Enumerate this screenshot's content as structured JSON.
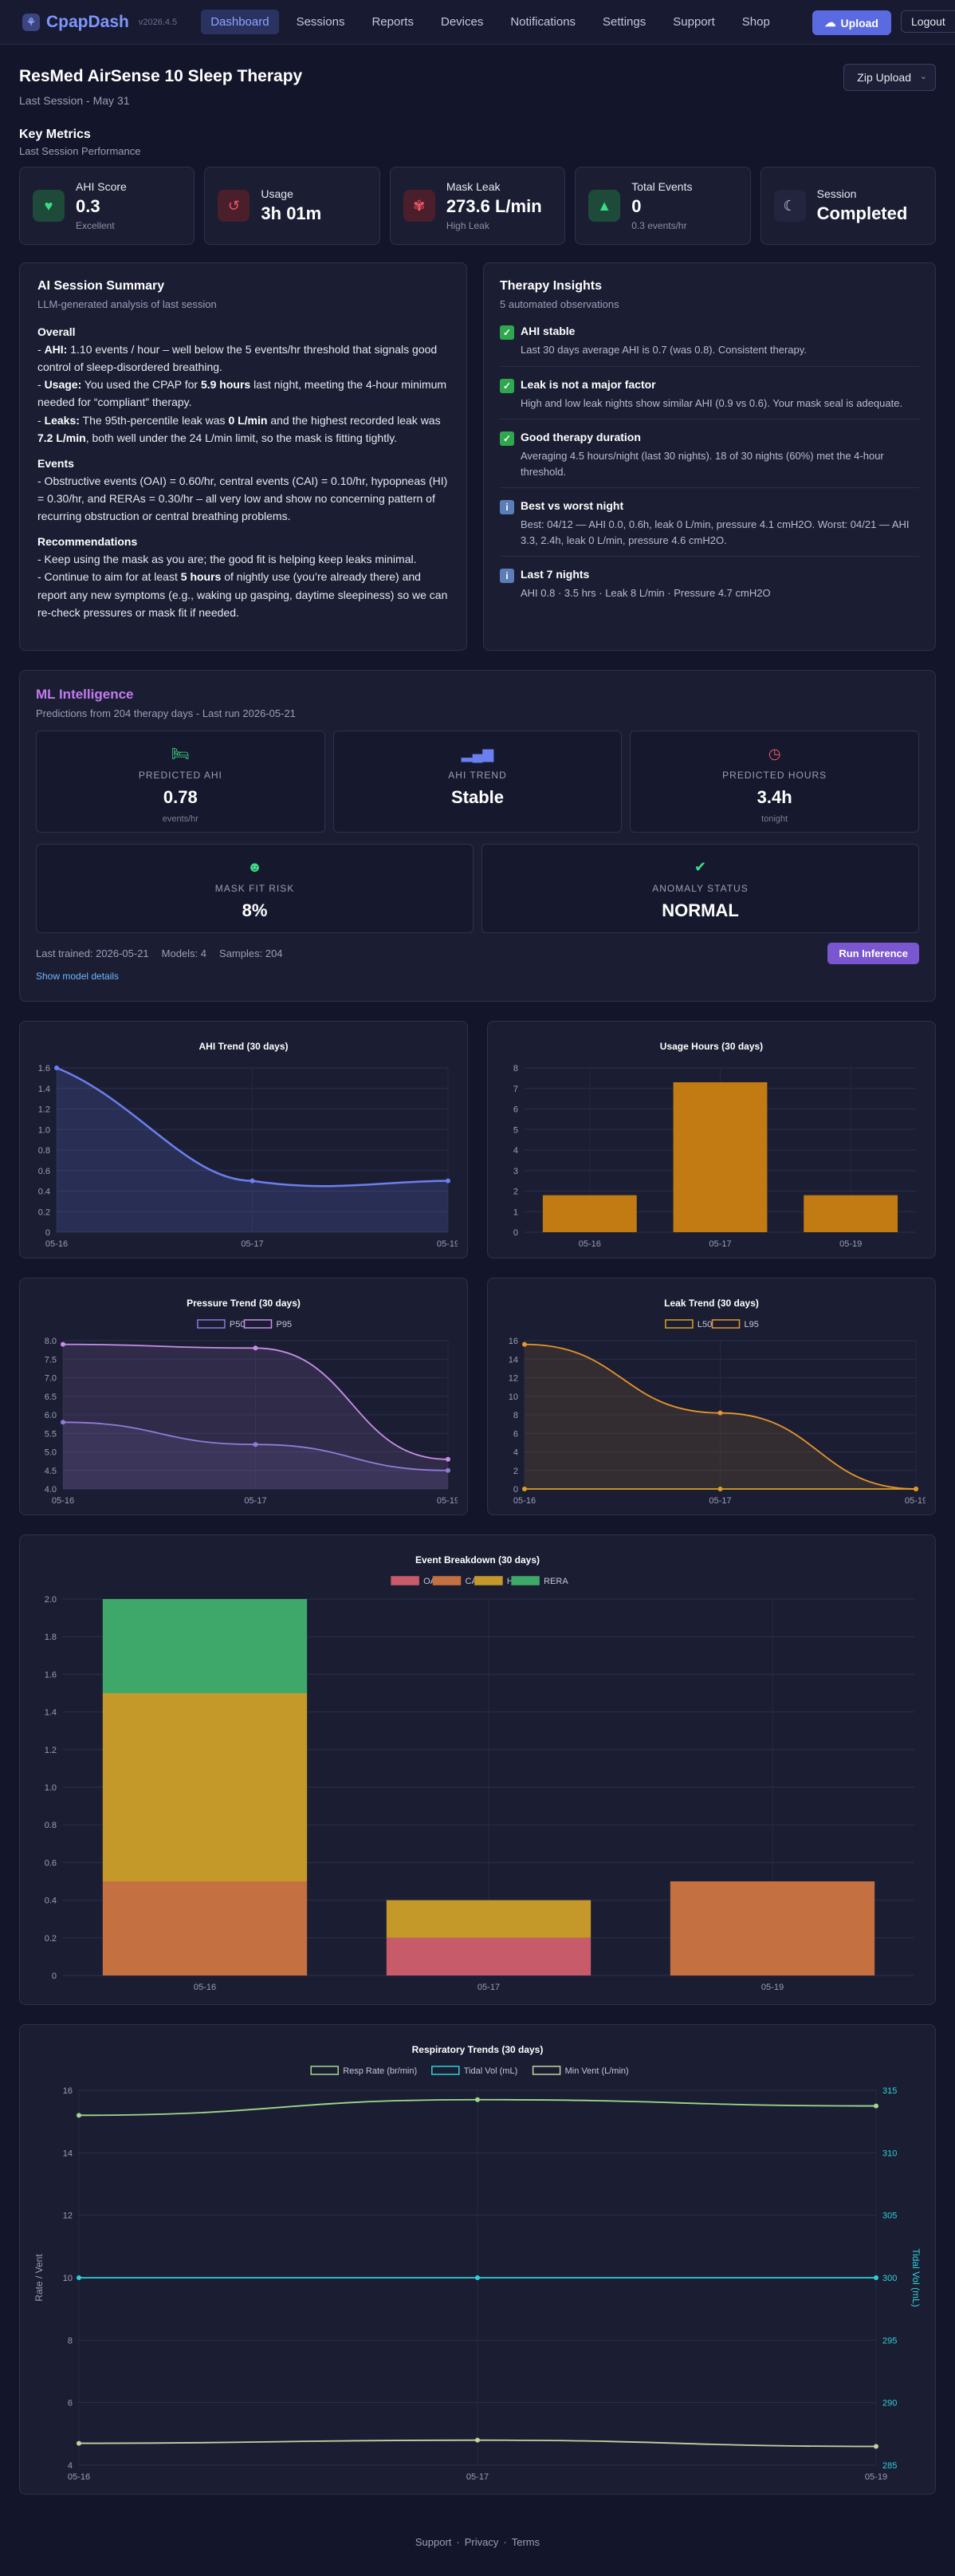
{
  "nav": {
    "brand": "CpapDash",
    "version": "v2026.4.5",
    "links": [
      "Dashboard",
      "Sessions",
      "Reports",
      "Devices",
      "Notifications",
      "Settings",
      "Support",
      "Shop"
    ],
    "upload": "Upload",
    "logout": "Logout"
  },
  "header": {
    "title": "ResMed AirSense 10 Sleep Therapy",
    "subtitle": "Last Session - May 31",
    "zip_upload": "Zip Upload"
  },
  "metrics": {
    "title": "Key Metrics",
    "subtitle": "Last Session Performance",
    "ahi": {
      "label": "AHI Score",
      "value": "0.3",
      "note": "Excellent"
    },
    "usage": {
      "label": "Usage",
      "value": "3h 01m"
    },
    "leak": {
      "label": "Mask Leak",
      "value": "273.6 L/min",
      "note": "High Leak"
    },
    "events": {
      "label": "Total Events",
      "value": "0",
      "note": "0.3 events/hr"
    },
    "session": {
      "label": "Session",
      "value": "Completed"
    }
  },
  "summary": {
    "title": "AI Session Summary",
    "subtitle": "LLM-generated analysis of last session",
    "overall_h": "Overall",
    "l1a": "- ",
    "l1b": "AHI:",
    "l1c": " 1.10 events / hour – well below the 5 events/hr threshold that signals good control of sleep-disordered breathing.",
    "l2a": "- ",
    "l2b": "Usage:",
    "l2c": " You used the CPAP for ",
    "l2d": "5.9 hours",
    "l2e": " last night, meeting the 4-hour minimum needed for “compliant” therapy.",
    "l3a": "- ",
    "l3b": "Leaks:",
    "l3c": " The 95th-percentile leak was ",
    "l3d": "0 L/min",
    "l3e": " and the highest recorded leak was ",
    "l3f": "7.2 L/min",
    "l3g": ", both well under the 24 L/min limit, so the mask is fitting tightly.",
    "events_h": "Events",
    "ev1": "- Obstructive events (OAI) = 0.60/hr, central events (CAI) = 0.10/hr, hypopneas (HI) = 0.30/hr, and RERAs = 0.30/hr – all very low and show no concerning pattern of recurring obstruction or central breathing problems.",
    "rec_h": "Recommendations",
    "rec1": "- Keep using the mask as you are; the good fit is helping keep leaks minimal.",
    "rec2a": "- Continue to aim for at least ",
    "rec2b": "5 hours",
    "rec2c": " of nightly use (you’re already there) and report any new symptoms (e.g., waking up gasping, daytime sleepiness) so we can re-check pressures or mask fit if needed."
  },
  "insights": {
    "title": "Therapy Insights",
    "subtitle": "5 automated observations",
    "items": [
      {
        "icon": "check-icon",
        "title": "AHI stable",
        "text": "Last 30 days average AHI is 0.7 (was 0.8). Consistent therapy."
      },
      {
        "icon": "check-icon",
        "title": "Leak is not a major factor",
        "text": "High and low leak nights show similar AHI (0.9 vs 0.6). Your mask seal is adequate."
      },
      {
        "icon": "check-icon",
        "title": "Good therapy duration",
        "text": "Averaging 4.5 hours/night (last 30 nights). 18 of 30 nights (60%) met the 4-hour threshold."
      },
      {
        "icon": "info-icon",
        "title": "Best vs worst night",
        "text": "Best: 04/12 — AHI 0.0, 0.6h, leak 0 L/min, pressure 4.1 cmH2O. Worst: 04/21 — AHI 3.3, 2.4h, leak 0 L/min, pressure 4.6 cmH2O."
      },
      {
        "icon": "info-icon",
        "title": "Last 7 nights",
        "text": "AHI 0.8 · 3.5 hrs · Leak 8 L/min · Pressure 4.7 cmH2O"
      }
    ]
  },
  "ml": {
    "title": "ML Intelligence",
    "subtitle": "Predictions from 204 therapy days - Last run 2026-05-21",
    "predicted_ahi": {
      "label": "PREDICTED AHI",
      "value": "0.78",
      "note": "events/hr"
    },
    "ahi_trend": {
      "label": "AHI TREND",
      "value": "Stable"
    },
    "predicted_hours": {
      "label": "PREDICTED HOURS",
      "value": "3.4h",
      "note": "tonight"
    },
    "mask_fit": {
      "label": "MASK FIT RISK",
      "value": "8%"
    },
    "anomaly": {
      "label": "ANOMALY STATUS",
      "value": "NORMAL"
    },
    "last_trained": "Last trained: 2026-05-21",
    "models": "Models: 4",
    "samples": "Samples: 204",
    "run": "Run Inference",
    "details": "Show model details"
  },
  "chart_data": [
    {
      "type": "area",
      "title": "AHI Trend (30 days)",
      "categories": [
        "05-16",
        "05-17",
        "05-19"
      ],
      "values": [
        1.6,
        0.5,
        0.5
      ],
      "ylim": [
        0,
        1.6
      ],
      "yticks": [
        "0",
        "0.2",
        "0.4",
        "0.6",
        "0.8",
        "1.0",
        "1.2",
        "1.4",
        "1.6"
      ],
      "color": "#6b7ff0"
    },
    {
      "type": "bar",
      "title": "Usage Hours (30 days)",
      "categories": [
        "05-16",
        "05-17",
        "05-19"
      ],
      "values": [
        1.8,
        7.3,
        1.8
      ],
      "ylim": [
        0,
        8
      ],
      "yticks": [
        "0",
        "1",
        "2",
        "3",
        "4",
        "5",
        "6",
        "7",
        "8"
      ],
      "color": "#c27a12"
    },
    {
      "type": "line",
      "title": "Pressure Trend (30 days)",
      "categories": [
        "05-16",
        "05-17",
        "05-19"
      ],
      "series": [
        {
          "name": "P50",
          "values": [
            5.8,
            5.2,
            4.5
          ]
        },
        {
          "name": "P95",
          "values": [
            7.9,
            7.8,
            4.8
          ]
        }
      ],
      "ylim": [
        4,
        8
      ],
      "yticks": [
        "4.0",
        "4.5",
        "5.0",
        "5.5",
        "6.0",
        "6.5",
        "7.0",
        "7.5",
        "8.0"
      ],
      "colors": [
        "#8c78d8",
        "#c98de8"
      ]
    },
    {
      "type": "line",
      "title": "Leak Trend (30 days)",
      "categories": [
        "05-16",
        "05-17",
        "05-19"
      ],
      "series": [
        {
          "name": "L50",
          "values": [
            0,
            0,
            0
          ]
        },
        {
          "name": "L95",
          "values": [
            15.6,
            8.2,
            0
          ]
        }
      ],
      "ylim": [
        0,
        16
      ],
      "yticks": [
        "0",
        "2",
        "4",
        "6",
        "8",
        "10",
        "12",
        "14",
        "16"
      ],
      "colors": [
        "#d8a020",
        "#e8962a"
      ]
    },
    {
      "type": "bar",
      "title": "Event Breakdown (30 days)",
      "categories": [
        "05-16",
        "05-17",
        "05-19"
      ],
      "series": [
        {
          "name": "OA",
          "values": [
            0,
            0.2,
            0
          ]
        },
        {
          "name": "CA",
          "values": [
            0.5,
            0,
            0.5
          ]
        },
        {
          "name": "H",
          "values": [
            1.0,
            0.2,
            0
          ]
        },
        {
          "name": "RERA",
          "values": [
            0.5,
            0,
            0
          ]
        }
      ],
      "ylim": [
        0,
        2.0
      ],
      "yticks": [
        "0",
        "0.2",
        "0.4",
        "0.6",
        "0.8",
        "1.0",
        "1.2",
        "1.4",
        "1.6",
        "1.8",
        "2.0"
      ],
      "colors": [
        "#c75b6a",
        "#c57040",
        "#c5982a",
        "#3da86a"
      ]
    },
    {
      "type": "line",
      "title": "Respiratory Trends (30 days)",
      "categories": [
        "05-16",
        "05-17",
        "05-19"
      ],
      "series": [
        {
          "name": "Resp Rate (br/min)",
          "values": [
            15.2,
            15.7,
            15.5
          ],
          "axis": "left"
        },
        {
          "name": "Tidal Vol (mL)",
          "values": [
            300,
            300,
            300
          ],
          "axis": "right"
        },
        {
          "name": "Min Vent (L/min)",
          "values": [
            4.7,
            4.8,
            4.6
          ],
          "axis": "left"
        }
      ],
      "ylabel": "Rate / Vent",
      "y2label": "Tidal Vol (mL)",
      "ylim": [
        4,
        16
      ],
      "y2lim": [
        285,
        315
      ],
      "yticks": [
        "4",
        "6",
        "8",
        "10",
        "12",
        "14",
        "16"
      ],
      "y2ticks": [
        "285",
        "290",
        "295",
        "300",
        "305",
        "310",
        "315"
      ],
      "colors": [
        "#9fd88c",
        "#2fcfd8",
        "#c8d0a0"
      ]
    }
  ],
  "footer": {
    "support": "Support",
    "privacy": "Privacy",
    "terms": "Terms",
    "sep": "·"
  }
}
